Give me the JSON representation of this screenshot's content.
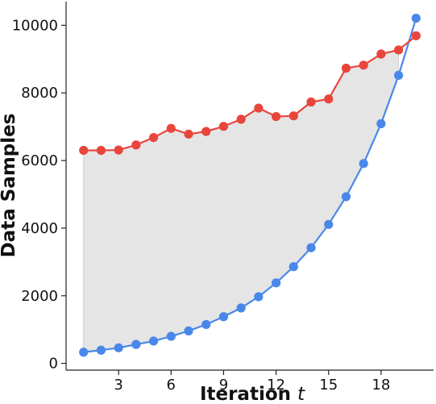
{
  "chart_data": {
    "type": "line",
    "title": "",
    "xlabel": "Iteration",
    "xlabel_var": "t",
    "ylabel": "Data Samples",
    "xlim": [
      0,
      21
    ],
    "ylim": [
      -200,
      10700
    ],
    "xticks": [
      3,
      6,
      9,
      12,
      15,
      18
    ],
    "yticks": [
      0,
      2000,
      4000,
      6000,
      8000,
      10000
    ],
    "grid": false,
    "legend": "none",
    "fill_between": {
      "color": "#e5e5e5",
      "series": [
        0,
        1
      ],
      "x_range": [
        1,
        19
      ]
    },
    "x": [
      1,
      2,
      3,
      4,
      5,
      6,
      7,
      8,
      9,
      10,
      11,
      12,
      13,
      14,
      15,
      16,
      17,
      18,
      19,
      20
    ],
    "series": [
      {
        "color": "#e8453c",
        "values": [
          6300,
          6300,
          6310,
          6460,
          6680,
          6950,
          6780,
          6860,
          7010,
          7220,
          7550,
          7300,
          7320,
          7730,
          7820,
          8730,
          8820,
          9150,
          9270,
          9690
        ]
      },
      {
        "color": "#4a87ea",
        "values": [
          330,
          390,
          460,
          560,
          660,
          800,
          960,
          1150,
          1380,
          1640,
          1970,
          2380,
          2860,
          3420,
          4110,
          4930,
          5910,
          7090,
          8520,
          10210
        ]
      }
    ]
  }
}
